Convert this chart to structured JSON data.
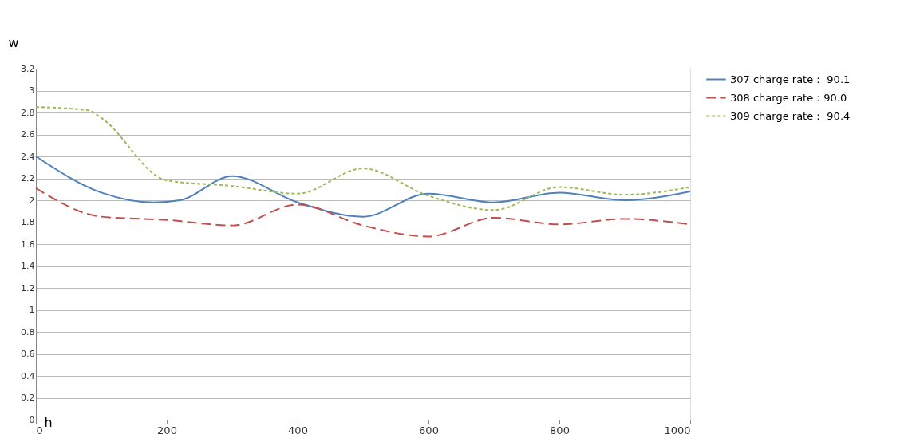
{
  "chart_data": {
    "type": "line",
    "xlabel": "h",
    "ylabel": "w",
    "x": [
      0,
      100,
      200,
      300,
      400,
      500,
      600,
      700,
      800,
      900,
      1000
    ],
    "series": [
      {
        "name": "307 charge rate： 90.1",
        "color": "#4f81bd",
        "line_style": "solid",
        "x": [
          0,
          100,
          180,
          220,
          300,
          400,
          500,
          600,
          700,
          800,
          900,
          1000
        ],
        "values": [
          2.4,
          2.07,
          1.98,
          2.0,
          2.22,
          1.98,
          1.85,
          2.06,
          1.98,
          2.07,
          2.0,
          2.08
        ]
      },
      {
        "name": "308 charge rate：90.0",
        "color": "#c0504d",
        "line_style": "dashed",
        "values": [
          2.11,
          1.85,
          1.82,
          1.77,
          1.96,
          1.77,
          1.67,
          1.84,
          1.78,
          1.83,
          1.78
        ]
      },
      {
        "name": "309 charge rate： 90.4",
        "color": "#9bbb59",
        "line_style": "dotted",
        "x": [
          0,
          80,
          100,
          200,
          300,
          400,
          500,
          600,
          700,
          800,
          900,
          1000
        ],
        "values": [
          2.85,
          2.82,
          2.75,
          2.18,
          2.13,
          2.06,
          2.29,
          2.04,
          1.91,
          2.12,
          2.05,
          2.12
        ]
      }
    ],
    "xlim": [
      0,
      1000
    ],
    "xticks": [
      0,
      200,
      400,
      600,
      800,
      1000
    ],
    "ylim": [
      0,
      3.2
    ],
    "yticks": [
      0,
      0.2,
      0.4,
      0.6,
      0.8,
      1,
      1.2,
      1.4,
      1.6,
      1.8,
      2,
      2.2,
      2.4,
      2.6,
      2.8,
      3,
      3.2
    ],
    "grid": "y",
    "legend": "right",
    "marker": "none"
  }
}
